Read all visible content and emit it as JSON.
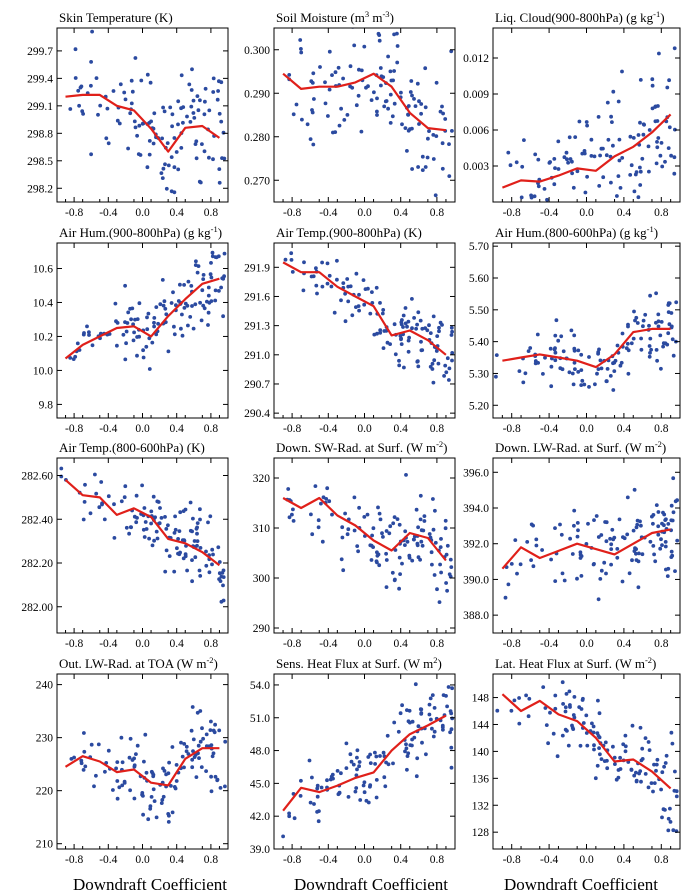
{
  "figure": {
    "xlabel": "Downdraft Coefficient",
    "colors": {
      "points": "#2b4aa0",
      "line": "#e0201a",
      "axes": "#000000"
    }
  },
  "chart_data": [
    {
      "type": "scatter",
      "title_parts": [
        "Skin Temperature (K)"
      ],
      "xlim": [
        -1.0,
        1.0
      ],
      "ylim": [
        298.05,
        299.95
      ],
      "yticks": [
        298.2,
        298.5,
        298.8,
        299.1,
        299.4,
        299.7
      ],
      "ytick_labels": [
        "298.2",
        "298.5",
        "298.8",
        "299.1",
        "299.4",
        "299.7"
      ],
      "xticks": [
        -0.8,
        -0.4,
        0.0,
        0.4,
        0.8
      ],
      "xtick_labels": [
        "-0.8",
        "-0.4",
        "0.0",
        "0.4",
        "0.8"
      ],
      "line": {
        "x": [
          -0.9,
          -0.7,
          -0.5,
          -0.3,
          -0.1,
          0.1,
          0.3,
          0.5,
          0.7,
          0.9
        ],
        "y": [
          299.2,
          299.22,
          299.22,
          299.1,
          299.05,
          298.85,
          298.6,
          298.86,
          298.88,
          298.75
        ]
      },
      "scatter": {
        "n": 130,
        "spread": 0.42,
        "seed": 11
      }
    },
    {
      "type": "scatter",
      "title_parts": [
        "Soil Moisture (m",
        "3",
        " m",
        "-3",
        ")"
      ],
      "xlim": [
        -1.0,
        1.0
      ],
      "ylim": [
        0.265,
        0.305
      ],
      "yticks": [
        0.27,
        0.28,
        0.29,
        0.3
      ],
      "ytick_labels": [
        "0.270",
        "0.280",
        "0.290",
        "0.300"
      ],
      "xticks": [
        -0.8,
        -0.4,
        0.0,
        0.4,
        0.8
      ],
      "xtick_labels": [
        "-0.8",
        "-0.4",
        "0.0",
        "0.4",
        "0.8"
      ],
      "line": {
        "x": [
          -0.9,
          -0.7,
          -0.5,
          -0.3,
          -0.1,
          0.1,
          0.3,
          0.5,
          0.7,
          0.9
        ],
        "y": [
          0.2945,
          0.291,
          0.2915,
          0.2915,
          0.2925,
          0.2945,
          0.2915,
          0.2855,
          0.282,
          0.2815
        ]
      },
      "scatter": {
        "n": 130,
        "spread": 0.01,
        "seed": 23
      }
    },
    {
      "type": "scatter",
      "title_parts": [
        "Liq. Cloud(900-800hPa) (g kg",
        "-1",
        ")"
      ],
      "xlim": [
        -1.0,
        1.0
      ],
      "ylim": [
        0.0,
        0.0145
      ],
      "yticks": [
        0.003,
        0.006,
        0.009,
        0.012
      ],
      "ytick_labels": [
        "0.003",
        "0.006",
        "0.009",
        "0.012"
      ],
      "xticks": [
        -0.8,
        -0.4,
        0.0,
        0.4,
        0.8
      ],
      "xtick_labels": [
        "-0.8",
        "-0.4",
        "0.0",
        "0.4",
        "0.8"
      ],
      "line": {
        "x": [
          -0.9,
          -0.7,
          -0.5,
          -0.3,
          -0.1,
          0.1,
          0.3,
          0.5,
          0.7,
          0.9
        ],
        "y": [
          0.0012,
          0.0018,
          0.0017,
          0.0022,
          0.0028,
          0.0026,
          0.0038,
          0.0046,
          0.0058,
          0.0073
        ]
      },
      "scatter": {
        "n": 130,
        "spread": 0.0033,
        "seed": 37
      }
    },
    {
      "type": "scatter",
      "title_parts": [
        "Air Hum.(900-800hPa) (g kg",
        "-1",
        ")"
      ],
      "xlim": [
        -1.0,
        1.0
      ],
      "ylim": [
        9.72,
        10.75
      ],
      "yticks": [
        9.8,
        10.0,
        10.2,
        10.4,
        10.6
      ],
      "ytick_labels": [
        "9.8",
        "10.0",
        "10.2",
        "10.4",
        "10.6"
      ],
      "xticks": [
        -0.8,
        -0.4,
        0.0,
        0.4,
        0.8
      ],
      "xtick_labels": [
        "-0.8",
        "-0.4",
        "0.0",
        "0.4",
        "0.8"
      ],
      "line": {
        "x": [
          -0.9,
          -0.7,
          -0.5,
          -0.3,
          -0.1,
          0.1,
          0.3,
          0.5,
          0.7,
          0.9
        ],
        "y": [
          10.07,
          10.15,
          10.2,
          10.25,
          10.26,
          10.2,
          10.32,
          10.42,
          10.51,
          10.54
        ]
      },
      "scatter": {
        "n": 130,
        "spread": 0.14,
        "seed": 41
      }
    },
    {
      "type": "scatter",
      "title_parts": [
        "Air Temp.(900-800hPa) (K)"
      ],
      "xlim": [
        -1.0,
        1.0
      ],
      "ylim": [
        290.35,
        292.15
      ],
      "yticks": [
        290.4,
        290.7,
        291.0,
        291.3,
        291.6,
        291.9
      ],
      "ytick_labels": [
        "290.4",
        "290.7",
        "291.0",
        "291.3",
        "291.6",
        "291.9"
      ],
      "xticks": [
        -0.8,
        -0.4,
        0.0,
        0.4,
        0.8
      ],
      "xtick_labels": [
        "-0.8",
        "-0.4",
        "0.0",
        "0.4",
        "0.8"
      ],
      "line": {
        "x": [
          -0.9,
          -0.7,
          -0.5,
          -0.3,
          -0.1,
          0.1,
          0.3,
          0.5,
          0.7,
          0.9
        ],
        "y": [
          291.95,
          291.85,
          291.85,
          291.7,
          291.6,
          291.5,
          291.2,
          291.25,
          291.15,
          291.0
        ]
      },
      "scatter": {
        "n": 130,
        "spread": 0.24,
        "seed": 53
      }
    },
    {
      "type": "scatter",
      "title_parts": [
        "Air Hum.(800-600hPa) (g kg",
        "-1",
        ")"
      ],
      "xlim": [
        -1.0,
        1.0
      ],
      "ylim": [
        5.16,
        5.71
      ],
      "yticks": [
        5.2,
        5.3,
        5.4,
        5.5,
        5.6,
        5.7
      ],
      "ytick_labels": [
        "5.20",
        "5.30",
        "5.40",
        "5.50",
        "5.60",
        "5.70"
      ],
      "xticks": [
        -0.8,
        -0.4,
        0.0,
        0.4,
        0.8
      ],
      "xtick_labels": [
        "-0.8",
        "-0.4",
        "0.0",
        "0.4",
        "0.8"
      ],
      "line": {
        "x": [
          -0.9,
          -0.7,
          -0.5,
          -0.3,
          -0.1,
          0.1,
          0.3,
          0.5,
          0.7,
          0.9
        ],
        "y": [
          5.34,
          5.35,
          5.36,
          5.35,
          5.34,
          5.32,
          5.36,
          5.43,
          5.44,
          5.44
        ]
      },
      "scatter": {
        "n": 130,
        "spread": 0.07,
        "seed": 67
      }
    },
    {
      "type": "scatter",
      "title_parts": [
        "Air Temp.(800-600hPa) (K)"
      ],
      "xlim": [
        -1.0,
        1.0
      ],
      "ylim": [
        281.88,
        282.68
      ],
      "yticks": [
        282.0,
        282.2,
        282.4,
        282.6
      ],
      "ytick_labels": [
        "282.00",
        "282.20",
        "282.40",
        "282.60"
      ],
      "xticks": [
        -0.8,
        -0.4,
        0.0,
        0.4,
        0.8
      ],
      "xtick_labels": [
        "-0.8",
        "-0.4",
        "0.0",
        "0.4",
        "0.8"
      ],
      "line": {
        "x": [
          -0.9,
          -0.7,
          -0.5,
          -0.3,
          -0.1,
          0.1,
          0.3,
          0.5,
          0.7,
          0.9
        ],
        "y": [
          282.58,
          282.51,
          282.5,
          282.42,
          282.45,
          282.41,
          282.31,
          282.29,
          282.25,
          282.19
        ]
      },
      "scatter": {
        "n": 130,
        "spread": 0.1,
        "seed": 71
      }
    },
    {
      "type": "scatter",
      "title_parts": [
        "Down. SW-Rad. at Surf. (W m",
        "-2",
        ")"
      ],
      "xlim": [
        -1.0,
        1.0
      ],
      "ylim": [
        289.0,
        324.0
      ],
      "yticks": [
        290,
        300,
        310,
        320
      ],
      "ytick_labels": [
        "290",
        "300",
        "310",
        "320"
      ],
      "xticks": [
        -0.8,
        -0.4,
        0.0,
        0.4,
        0.8
      ],
      "xtick_labels": [
        "-0.8",
        "-0.4",
        "0.0",
        "0.4",
        "0.8"
      ],
      "line": {
        "x": [
          -0.9,
          -0.7,
          -0.5,
          -0.3,
          -0.1,
          0.1,
          0.3,
          0.5,
          0.7,
          0.9
        ],
        "y": [
          316.0,
          314.0,
          316.0,
          312.5,
          310.5,
          307.5,
          305.5,
          309.0,
          308.0,
          303.5
        ]
      },
      "scatter": {
        "n": 130,
        "spread": 6.0,
        "seed": 83
      }
    },
    {
      "type": "scatter",
      "title_parts": [
        "Down. LW-Rad. at Surf. (W m",
        "-2",
        ")"
      ],
      "xlim": [
        -1.0,
        1.0
      ],
      "ylim": [
        387.0,
        396.8
      ],
      "yticks": [
        388.0,
        390.0,
        392.0,
        394.0,
        396.0
      ],
      "ytick_labels": [
        "388.0",
        "390.0",
        "392.0",
        "394.0",
        "396.0"
      ],
      "xticks": [
        -0.8,
        -0.4,
        0.0,
        0.4,
        0.8
      ],
      "xtick_labels": [
        "-0.8",
        "-0.4",
        "0.0",
        "0.4",
        "0.8"
      ],
      "line": {
        "x": [
          -0.9,
          -0.7,
          -0.5,
          -0.3,
          -0.1,
          0.1,
          0.3,
          0.5,
          0.7,
          0.9
        ],
        "y": [
          390.6,
          391.8,
          391.2,
          391.6,
          392.0,
          391.7,
          391.4,
          392.0,
          392.6,
          392.8
        ]
      },
      "scatter": {
        "n": 130,
        "spread": 1.6,
        "seed": 97
      }
    },
    {
      "type": "scatter",
      "title_parts": [
        "Out. LW-Rad. at TOA (W m",
        "-2",
        ")"
      ],
      "xlim": [
        -1.0,
        1.0
      ],
      "ylim": [
        209.0,
        242.0
      ],
      "yticks": [
        210,
        220,
        230,
        240
      ],
      "ytick_labels": [
        "210",
        "220",
        "230",
        "240"
      ],
      "xticks": [
        -0.8,
        -0.4,
        0.0,
        0.4,
        0.8
      ],
      "xtick_labels": [
        "-0.8",
        "-0.4",
        "0.0",
        "0.4",
        "0.8"
      ],
      "line": {
        "x": [
          -0.9,
          -0.7,
          -0.5,
          -0.3,
          -0.1,
          0.1,
          0.3,
          0.5,
          0.7,
          0.9
        ],
        "y": [
          224.5,
          226.5,
          225.5,
          223.5,
          224.0,
          221.5,
          221.0,
          226.0,
          228.0,
          228.0
        ]
      },
      "scatter": {
        "n": 130,
        "spread": 5.0,
        "seed": 101
      }
    },
    {
      "type": "scatter",
      "title_parts": [
        "Sens. Heat Flux at Surf. (W m",
        "2",
        ")"
      ],
      "xlim": [
        -1.0,
        1.0
      ],
      "ylim": [
        39.0,
        55.0
      ],
      "yticks": [
        39.0,
        42.0,
        45.0,
        48.0,
        51.0,
        54.0
      ],
      "ytick_labels": [
        "39.0",
        "42.0",
        "45.0",
        "48.0",
        "51.0",
        "54.0"
      ],
      "xticks": [
        -0.8,
        -0.4,
        0.0,
        0.4,
        0.8
      ],
      "xtick_labels": [
        "-0.8",
        "-0.4",
        "0.0",
        "0.4",
        "0.8"
      ],
      "line": {
        "x": [
          -0.9,
          -0.7,
          -0.5,
          -0.3,
          -0.1,
          0.1,
          0.3,
          0.5,
          0.7,
          0.9
        ],
        "y": [
          42.5,
          44.6,
          44.2,
          44.8,
          45.5,
          46.0,
          48.0,
          49.5,
          50.3,
          51.2
        ]
      },
      "scatter": {
        "n": 130,
        "spread": 2.3,
        "seed": 113
      }
    },
    {
      "type": "scatter",
      "title_parts": [
        "Lat. Heat Flux at Surf. (W m",
        "-2",
        ")"
      ],
      "xlim": [
        -1.0,
        1.0
      ],
      "ylim": [
        125.5,
        151.5
      ],
      "yticks": [
        128,
        132,
        136,
        140,
        144,
        148
      ],
      "ytick_labels": [
        "128",
        "132",
        "136",
        "140",
        "144",
        "148"
      ],
      "xticks": [
        -0.8,
        -0.4,
        0.0,
        0.4,
        0.8
      ],
      "xtick_labels": [
        "-0.8",
        "-0.4",
        "0.0",
        "0.4",
        "0.8"
      ],
      "line": {
        "x": [
          -0.9,
          -0.7,
          -0.5,
          -0.3,
          -0.1,
          0.1,
          0.3,
          0.5,
          0.7,
          0.9
        ],
        "y": [
          148.5,
          146.0,
          147.5,
          145.5,
          144.5,
          142.0,
          138.5,
          138.8,
          137.0,
          134.5
        ]
      },
      "scatter": {
        "n": 130,
        "spread": 4.0,
        "seed": 127
      }
    }
  ]
}
